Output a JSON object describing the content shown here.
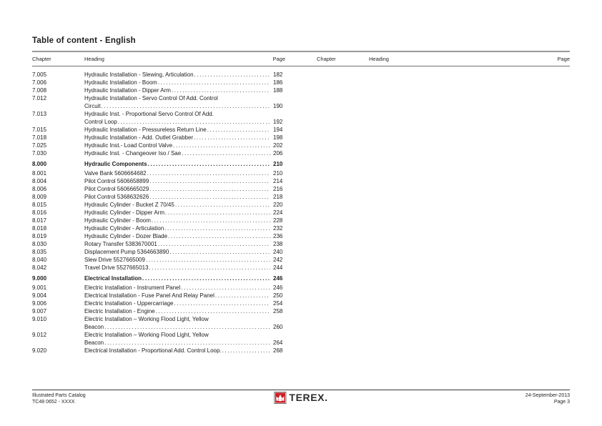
{
  "title": "Table of content - English",
  "table": {
    "columns": {
      "chapter": "Chapter",
      "heading": "Heading",
      "page": "Page"
    },
    "left_sections": [
      {
        "entries": [
          {
            "chapter": "7.005",
            "lines": [
              "Hydraulic Installation - Slewing, Articulation"
            ],
            "page": "182"
          },
          {
            "chapter": "7.006",
            "lines": [
              "Hydraulic Installation - Boom"
            ],
            "page": "186"
          },
          {
            "chapter": "7.008",
            "lines": [
              "Hydraulic Installation - Dipper Arm"
            ],
            "page": "188"
          },
          {
            "chapter": "7.012",
            "lines": [
              "Hydraulic Installation - Servo Control Of Add. Control",
              "Circuit"
            ],
            "page": "190"
          },
          {
            "chapter": "7.013",
            "lines": [
              "Hydraulic Inst. - Proportional Servo Control Of Add.",
              "Control Loop"
            ],
            "page": "192"
          },
          {
            "chapter": "7.015",
            "lines": [
              "Hydraulic Installation - Pressureless Return Line"
            ],
            "page": "194"
          },
          {
            "chapter": "7.018",
            "lines": [
              "Hydraulic Installation - Add. Outlet Grabber"
            ],
            "page": "198"
          },
          {
            "chapter": "7.025",
            "lines": [
              "Hydraulic Inst.- Load Control Valve"
            ],
            "page": "202"
          },
          {
            "chapter": "7.030",
            "lines": [
              "Hydraulic Inst. - Changeover Iso / Sae"
            ],
            "page": "206"
          }
        ]
      },
      {
        "entries": [
          {
            "chapter": "8.000",
            "lines": [
              "Hydraulic Components"
            ],
            "page": "210",
            "bold": true
          },
          {
            "chapter": "8.001",
            "lines": [
              "Valve Bank 5606664682"
            ],
            "page": "210"
          },
          {
            "chapter": "8.004",
            "lines": [
              "Pilot Control 5606658899"
            ],
            "page": "214"
          },
          {
            "chapter": "8.006",
            "lines": [
              "Pilot Control 5606665029"
            ],
            "page": "216"
          },
          {
            "chapter": "8.009",
            "lines": [
              "Pilot Control 5368632626"
            ],
            "page": "218"
          },
          {
            "chapter": "8.015",
            "lines": [
              "Hydraulic Cylinder - Bucket Z 70/45"
            ],
            "page": "220"
          },
          {
            "chapter": "8.016",
            "lines": [
              "Hydraulic Cylinder - Dipper Arm"
            ],
            "page": "224"
          },
          {
            "chapter": "8.017",
            "lines": [
              "Hydraulic Cylinder - Boom"
            ],
            "page": "228"
          },
          {
            "chapter": "8.018",
            "lines": [
              "Hydraulic Cylinder - Articulation"
            ],
            "page": "232"
          },
          {
            "chapter": "8.019",
            "lines": [
              "Hydraulic Cylinder - Dozer Blade"
            ],
            "page": "236"
          },
          {
            "chapter": "8.030",
            "lines": [
              "Rotary Transfer 5383670001"
            ],
            "page": "238"
          },
          {
            "chapter": "8.035",
            "lines": [
              "Displacement Pump 5364663890"
            ],
            "page": "240"
          },
          {
            "chapter": "8.040",
            "lines": [
              "Slew Drive 5527665009"
            ],
            "page": "242"
          },
          {
            "chapter": "8.042",
            "lines": [
              "Travel Drive 5527665013"
            ],
            "page": "244"
          }
        ]
      },
      {
        "entries": [
          {
            "chapter": "9.000",
            "lines": [
              "Electrical Installation"
            ],
            "page": "246",
            "bold": true
          },
          {
            "chapter": "9.001",
            "lines": [
              "Electric Installation - Instrument Panel"
            ],
            "page": "246"
          },
          {
            "chapter": "9.004",
            "lines": [
              "Electrical Installation - Fuse Panel And Relay Panel"
            ],
            "page": "250"
          },
          {
            "chapter": "9.006",
            "lines": [
              "Electric Installation - Uppercarriage"
            ],
            "page": "254"
          },
          {
            "chapter": "9.007",
            "lines": [
              "Electric Installation - Engine"
            ],
            "page": "258"
          },
          {
            "chapter": "9.010",
            "lines": [
              "Electric Installation – Working Flood Light, Yellow",
              "Beacon"
            ],
            "page": "260"
          },
          {
            "chapter": "9.012",
            "lines": [
              "Electric Installation – Working Flood Light, Yellow",
              "Beacon"
            ],
            "page": "264"
          },
          {
            "chapter": "9.020",
            "lines": [
              "Electrical Installation - Proportional Add. Control Loop."
            ],
            "page": "268"
          }
        ]
      }
    ],
    "right_sections": []
  },
  "footer": {
    "catalog_line1": "Illustrated Parts Catalog",
    "catalog_line2": "TC48 0652 - XXXX",
    "logo_text": "TEREX.",
    "date": "24-September-2013",
    "page_number": "Page 3"
  },
  "colors": {
    "logo_red": "#cc2027"
  }
}
